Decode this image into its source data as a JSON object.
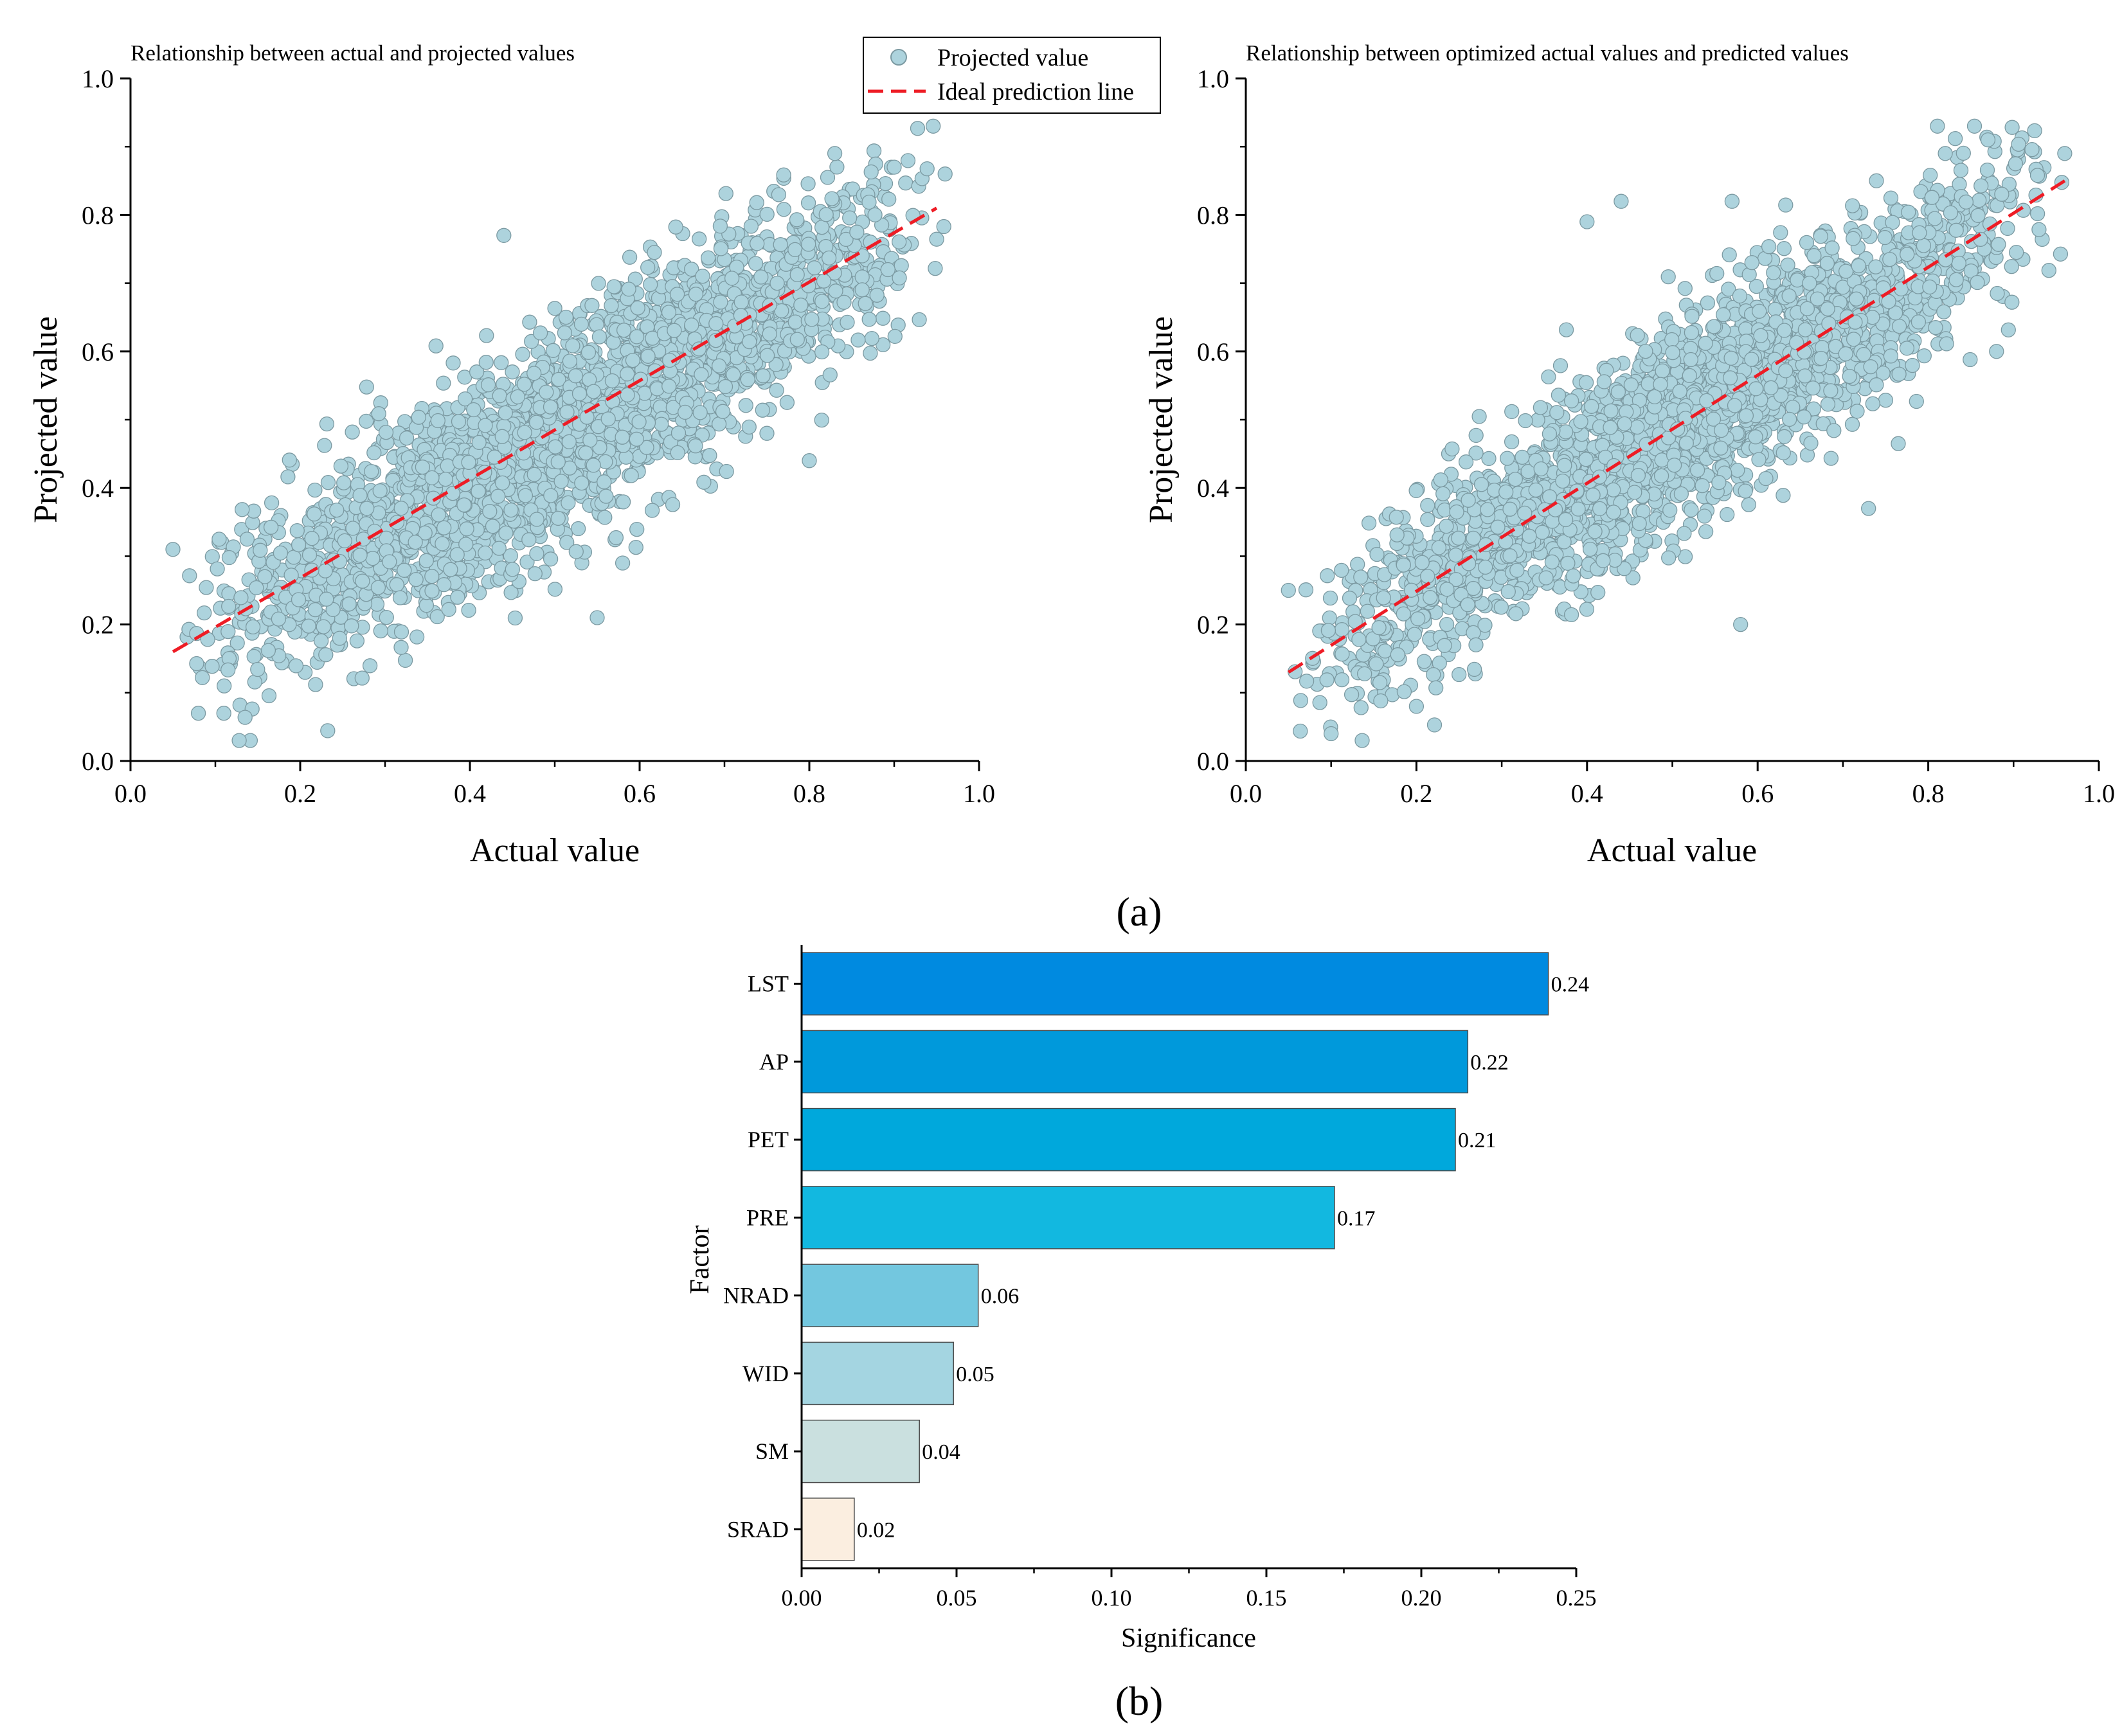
{
  "figure": {
    "panel_a_label": "(a)",
    "panel_b_label": "(b)"
  },
  "legend": {
    "scatter_label": "Projected value",
    "line_label": "Ideal prediction line"
  },
  "colors": {
    "scatter_fill": "#add3dd",
    "scatter_edge": "#7c9aa2",
    "ideal_line": "#ee1c25",
    "axis": "#000000"
  },
  "chart_data": [
    {
      "type": "scatter",
      "title": "Relationship between actual and projected values",
      "xlabel": "Actual value",
      "ylabel": "Projected value",
      "xlim": [
        0.0,
        1.0
      ],
      "ylim": [
        0.0,
        1.0
      ],
      "xticks": [
        "0.0",
        "0.2",
        "0.4",
        "0.6",
        "0.8",
        "1.0"
      ],
      "yticks": [
        "0.0",
        "0.2",
        "0.4",
        "0.6",
        "0.8",
        "1.0"
      ],
      "series": [
        {
          "name": "Projected value",
          "kind": "points",
          "x_range": [
            0.05,
            0.96
          ],
          "trend_slope": 0.72,
          "trend_intercept": 0.12,
          "spread_sd": 0.075,
          "n_points": 2600
        },
        {
          "name": "Ideal prediction line",
          "kind": "line",
          "x": [
            0.05,
            0.95
          ],
          "y": [
            0.16,
            0.81
          ]
        }
      ],
      "outliers": [
        [
          0.05,
          0.31
        ],
        [
          0.08,
          0.07
        ],
        [
          0.11,
          0.07
        ],
        [
          0.44,
          0.77
        ],
        [
          0.83,
          0.89
        ],
        [
          0.96,
          0.86
        ],
        [
          0.55,
          0.21
        ],
        [
          0.58,
          0.29
        ],
        [
          0.75,
          0.48
        ],
        [
          0.8,
          0.44
        ],
        [
          0.9,
          0.87
        ]
      ],
      "legend": true
    },
    {
      "type": "scatter",
      "title": "Relationship between optimized actual values and predicted values",
      "xlabel": "Actual value",
      "ylabel": "Projected value",
      "xlim": [
        0.0,
        1.0
      ],
      "ylim": [
        0.0,
        1.0
      ],
      "xticks": [
        "0.0",
        "0.2",
        "0.4",
        "0.6",
        "0.8",
        "1.0"
      ],
      "yticks": [
        "0.0",
        "0.2",
        "0.4",
        "0.6",
        "0.8",
        "1.0"
      ],
      "series": [
        {
          "name": "Projected value",
          "kind": "points",
          "x_range": [
            0.05,
            0.96
          ],
          "trend_slope": 0.78,
          "trend_intercept": 0.1,
          "spread_sd": 0.07,
          "n_points": 2600
        },
        {
          "name": "Ideal prediction line",
          "kind": "line",
          "x": [
            0.05,
            0.96
          ],
          "y": [
            0.13,
            0.85
          ]
        }
      ],
      "outliers": [
        [
          0.05,
          0.25
        ],
        [
          0.1,
          0.04
        ],
        [
          0.2,
          0.08
        ],
        [
          0.4,
          0.79
        ],
        [
          0.44,
          0.82
        ],
        [
          0.57,
          0.82
        ],
        [
          0.82,
          0.89
        ],
        [
          0.87,
          0.91
        ],
        [
          0.96,
          0.89
        ],
        [
          0.58,
          0.2
        ],
        [
          0.73,
          0.37
        ],
        [
          0.88,
          0.6
        ]
      ],
      "legend": false
    },
    {
      "type": "bar",
      "orientation": "horizontal",
      "xlabel": "Significance",
      "ylabel": "Factor",
      "xlim": [
        0.0,
        0.25
      ],
      "xticks": [
        "0.00",
        "0.05",
        "0.10",
        "0.15",
        "0.20",
        "0.25"
      ],
      "categories": [
        "LST",
        "AP",
        "PET",
        "PRE",
        "NRAD",
        "WID",
        "SM",
        "SRAD"
      ],
      "values": [
        0.241,
        0.215,
        0.211,
        0.172,
        0.057,
        0.049,
        0.038,
        0.017
      ],
      "value_labels": [
        "0.24",
        "0.22",
        "0.21",
        "0.17",
        "0.06",
        "0.05",
        "0.04",
        "0.02"
      ],
      "colors": [
        "#008ae0",
        "#0099db",
        "#00a8dc",
        "#12b8e0",
        "#73c7df",
        "#a4d5e1",
        "#cae0df",
        "#fbeee0"
      ]
    }
  ]
}
